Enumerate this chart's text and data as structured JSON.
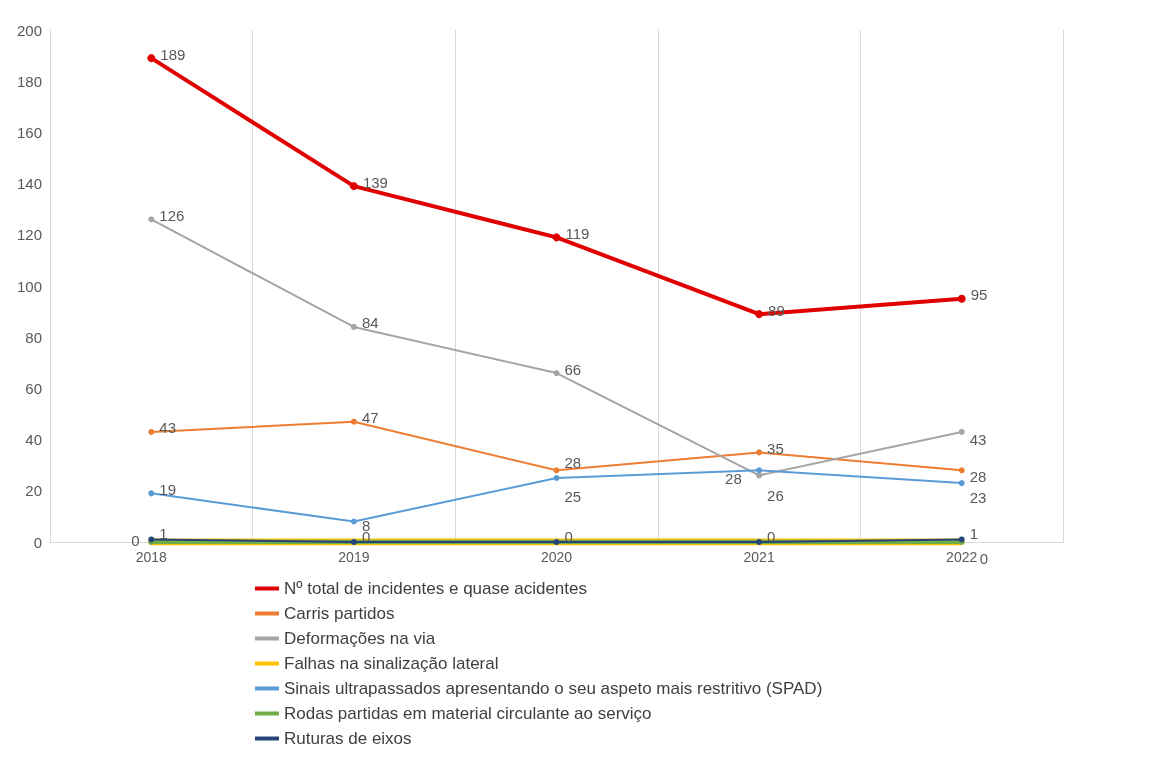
{
  "chart_data": {
    "type": "line",
    "categories": [
      "2018",
      "2019",
      "2020",
      "2021",
      "2022"
    ],
    "ylim": [
      0,
      200
    ],
    "yticks": [
      0,
      20,
      40,
      60,
      80,
      100,
      120,
      140,
      160,
      180,
      200
    ],
    "grid": "x",
    "legend": "bottom",
    "marker": "circle",
    "series": [
      {
        "name": "Nº total de incidentes e quase acidentes",
        "color": "#e00000",
        "values": [
          189,
          139,
          119,
          89,
          95
        ],
        "value_labels": [
          "189",
          "139",
          "119",
          "89",
          "95"
        ]
      },
      {
        "name": "Carris partidos",
        "color": "#ed7d31",
        "values": [
          43,
          47,
          28,
          35,
          28
        ],
        "value_labels": [
          "43",
          "47",
          "28",
          "35",
          "28"
        ]
      },
      {
        "name": "Deformações na via",
        "color": "#a5a5a5",
        "values": [
          126,
          84,
          66,
          26,
          43
        ],
        "value_labels": [
          "126",
          "84",
          "66",
          "26",
          "43"
        ]
      },
      {
        "name": "Falhas na sinalização lateral",
        "color": "#ffc000",
        "values": [
          0,
          0,
          0,
          0,
          0
        ]
      },
      {
        "name": "Sinais ultrapassados apresentando o seu aspeto mais restritivo (SPAD)",
        "color": "#5b9bd5",
        "values": [
          19,
          8,
          25,
          28,
          23
        ],
        "value_labels": [
          "19",
          "8",
          "25",
          "28",
          "23"
        ]
      },
      {
        "name": "Rodas partidas em material circulante ao serviço",
        "color": "#70ad47",
        "values": [
          0,
          0,
          0,
          0,
          0
        ],
        "value_labels": [
          "0",
          null,
          null,
          null,
          "0"
        ]
      },
      {
        "name": "Ruturas de eixos",
        "color": "#264478",
        "values": [
          1,
          0,
          0,
          0,
          1
        ],
        "value_labels": [
          "1",
          "0",
          "0",
          "0",
          "1"
        ]
      }
    ]
  }
}
